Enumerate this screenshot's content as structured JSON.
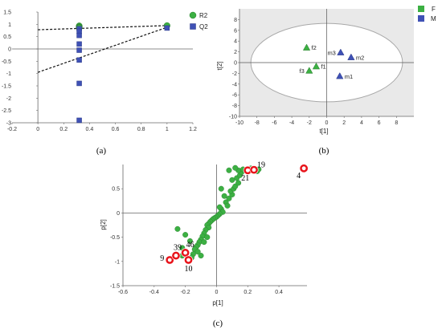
{
  "colors": {
    "green": "#3cb043",
    "blue": "#3f51b5",
    "highlight": "#e8141b",
    "shade": "#e9e9e9",
    "axis": "#666666",
    "grid": "#dcdcdc"
  },
  "chart_data": [
    {
      "id": "a",
      "type": "scatter",
      "caption": "(a)",
      "xlim": [
        -0.2,
        1.2
      ],
      "ylim": [
        -3,
        1.5
      ],
      "xticks": [
        -0.2,
        0,
        0.2,
        0.4,
        0.6,
        0.8,
        1,
        1.2
      ],
      "yticks": [
        -3,
        -2.5,
        -2,
        -1.5,
        -1,
        -0.5,
        0,
        0.5,
        1,
        1.5
      ],
      "grid": false,
      "legend": "top-right",
      "series": [
        {
          "name": "R2",
          "marker": "circle",
          "points": [
            [
              0.32,
              0.94
            ],
            [
              0.32,
              0.9
            ],
            [
              0.32,
              0.88
            ],
            [
              0.32,
              0.86
            ],
            [
              1.0,
              0.95
            ]
          ]
        },
        {
          "name": "Q2",
          "marker": "square",
          "points": [
            [
              0.32,
              0.82
            ],
            [
              0.32,
              0.72
            ],
            [
              0.32,
              0.55
            ],
            [
              0.32,
              0.2
            ],
            [
              0.32,
              -0.05
            ],
            [
              0.32,
              -0.45
            ],
            [
              0.32,
              -1.4
            ],
            [
              0.32,
              -2.9
            ],
            [
              1.0,
              0.85
            ]
          ]
        }
      ],
      "regression_lines": [
        {
          "from": [
            0,
            0.78
          ],
          "to": [
            1.0,
            0.95
          ]
        },
        {
          "from": [
            0,
            -0.95
          ],
          "to": [
            1.0,
            0.88
          ]
        }
      ]
    },
    {
      "id": "b",
      "type": "scatter",
      "caption": "(b)",
      "xlabel": "t[1]",
      "ylabel": "t[2]",
      "xlim": [
        -10,
        10
      ],
      "ylim": [
        -10,
        10
      ],
      "xticks": [
        -10,
        -8,
        -6,
        -4,
        -2,
        0,
        2,
        4,
        6,
        8
      ],
      "yticks": [
        -10,
        -8,
        -6,
        -4,
        -2,
        0,
        2,
        4,
        6,
        8
      ],
      "grid": false,
      "ellipse": {
        "rx": 8.7,
        "ry": 7.3
      },
      "legend": "top-right",
      "series": [
        {
          "name": "F",
          "marker": "triangle",
          "points": [
            {
              "x": -2.3,
              "y": 2.8,
              "label": "f2"
            },
            {
              "x": -1.2,
              "y": -0.7,
              "label": "f1"
            },
            {
              "x": -2.0,
              "y": -1.5,
              "label": "f3"
            }
          ]
        },
        {
          "name": "M",
          "marker": "triangle",
          "points": [
            {
              "x": 1.6,
              "y": 1.9,
              "label": "m3"
            },
            {
              "x": 2.8,
              "y": 1.0,
              "label": "m2"
            },
            {
              "x": 1.5,
              "y": -2.5,
              "label": "m1"
            }
          ]
        }
      ]
    },
    {
      "id": "c",
      "type": "scatter",
      "caption": "(c)",
      "xlabel": "p[1]",
      "ylabel": "p[2]",
      "xlim": [
        -0.6,
        0.58
      ],
      "ylim": [
        -1.5,
        1.0
      ],
      "xticks": [
        -0.6,
        -0.4,
        -0.2,
        0,
        0.2,
        0.4
      ],
      "yticks": [
        -1.5,
        -1,
        -0.5,
        0,
        0.5
      ],
      "grid": false,
      "points": [
        [
          0.03,
          0.08
        ],
        [
          0.04,
          0.02
        ],
        [
          0.02,
          -0.02
        ],
        [
          0.01,
          -0.05
        ],
        [
          0.0,
          -0.08
        ],
        [
          -0.01,
          -0.1
        ],
        [
          -0.02,
          -0.12
        ],
        [
          -0.03,
          -0.15
        ],
        [
          -0.04,
          -0.18
        ],
        [
          -0.05,
          -0.22
        ],
        [
          -0.06,
          -0.25
        ],
        [
          -0.05,
          -0.3
        ],
        [
          -0.07,
          -0.35
        ],
        [
          -0.08,
          -0.42
        ],
        [
          -0.09,
          -0.48
        ],
        [
          -0.1,
          -0.55
        ],
        [
          -0.11,
          -0.6
        ],
        [
          -0.12,
          -0.66
        ],
        [
          -0.13,
          -0.7
        ],
        [
          -0.14,
          -0.75
        ],
        [
          -0.12,
          -0.8
        ],
        [
          -0.15,
          -0.85
        ],
        [
          -0.1,
          -0.88
        ],
        [
          -0.16,
          -0.92
        ],
        [
          -0.22,
          -0.72
        ],
        [
          -0.25,
          -0.33
        ],
        [
          -0.2,
          -0.45
        ],
        [
          -0.17,
          -0.58
        ],
        [
          -0.22,
          -0.88
        ],
        [
          -0.08,
          -0.6
        ],
        [
          -0.06,
          -0.5
        ],
        [
          0.02,
          0.12
        ],
        [
          0.06,
          0.22
        ],
        [
          0.08,
          0.3
        ],
        [
          0.1,
          0.38
        ],
        [
          0.09,
          0.45
        ],
        [
          0.11,
          0.5
        ],
        [
          0.12,
          0.55
        ],
        [
          0.14,
          0.62
        ],
        [
          0.1,
          0.68
        ],
        [
          0.13,
          0.72
        ],
        [
          0.15,
          0.78
        ],
        [
          0.16,
          0.84
        ],
        [
          0.14,
          0.88
        ],
        [
          0.17,
          0.9
        ],
        [
          0.22,
          0.92
        ],
        [
          0.26,
          0.86
        ],
        [
          0.27,
          0.9
        ],
        [
          0.12,
          0.93
        ],
        [
          0.08,
          0.88
        ],
        [
          0.05,
          0.35
        ],
        [
          0.07,
          0.15
        ],
        [
          0.03,
          0.5
        ]
      ],
      "highlighted": [
        {
          "x": 0.2,
          "y": 0.88,
          "label": "21"
        },
        {
          "x": 0.24,
          "y": 0.89,
          "label": "19"
        },
        {
          "x": 0.56,
          "y": 0.92,
          "label": "4"
        },
        {
          "x": -0.3,
          "y": -0.97,
          "label": "9"
        },
        {
          "x": -0.26,
          "y": -0.88,
          "label": "39"
        },
        {
          "x": -0.2,
          "y": -0.82,
          "label": "46"
        },
        {
          "x": -0.18,
          "y": -0.97,
          "label": "10"
        }
      ]
    }
  ]
}
